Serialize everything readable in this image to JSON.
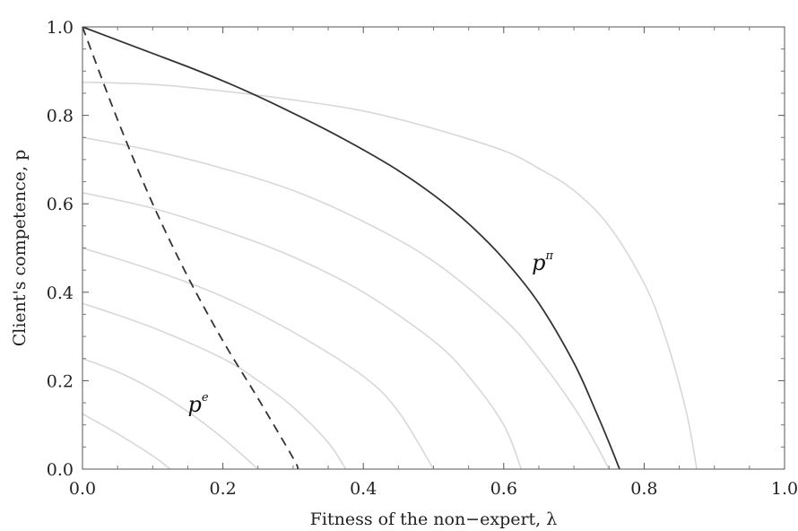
{
  "chart_data": {
    "type": "line",
    "xlabel": "Fitness of the non−expert, λ",
    "ylabel": "Client's competence, p",
    "xlim": [
      0,
      1
    ],
    "ylim": [
      0,
      1
    ],
    "x_ticks": [
      "0.0",
      "0.2",
      "0.4",
      "0.6",
      "0.8",
      "1.0"
    ],
    "y_ticks": [
      "0.0",
      "0.2",
      "0.4",
      "0.6",
      "0.8",
      "1.0"
    ],
    "grid": false,
    "series": [
      {
        "name": "pπ",
        "label_main": "p",
        "label_sup": "π",
        "style": "solid",
        "color": "#333333",
        "x": [
          0.0,
          0.05,
          0.1,
          0.15,
          0.2,
          0.25,
          0.3,
          0.35,
          0.4,
          0.45,
          0.5,
          0.55,
          0.6,
          0.65,
          0.7,
          0.73,
          0.75,
          0.765
        ],
        "y": [
          1.0,
          0.97,
          0.94,
          0.91,
          0.878,
          0.843,
          0.805,
          0.765,
          0.722,
          0.675,
          0.62,
          0.555,
          0.475,
          0.375,
          0.24,
          0.135,
          0.06,
          0.0
        ]
      },
      {
        "name": "pe",
        "label_main": "p",
        "label_sup": "e",
        "style": "dashed",
        "color": "#333333",
        "x": [
          0.0,
          0.05,
          0.1,
          0.15,
          0.2,
          0.25,
          0.3,
          0.307
        ],
        "y": [
          1.0,
          0.79,
          0.6,
          0.435,
          0.29,
          0.16,
          0.025,
          0.0
        ]
      }
    ],
    "background_curves": {
      "color": "#d8d8d8",
      "lines": [
        {
          "x": [
            0.0,
            0.05,
            0.1,
            0.125
          ],
          "y": [
            0.125,
            0.08,
            0.03,
            0.0
          ]
        },
        {
          "x": [
            0.0,
            0.05,
            0.1,
            0.15,
            0.2,
            0.25
          ],
          "y": [
            0.25,
            0.22,
            0.18,
            0.13,
            0.07,
            0.0
          ]
        },
        {
          "x": [
            0.0,
            0.1,
            0.2,
            0.25,
            0.3,
            0.35,
            0.375
          ],
          "y": [
            0.375,
            0.32,
            0.25,
            0.2,
            0.14,
            0.06,
            0.0
          ]
        },
        {
          "x": [
            0.0,
            0.1,
            0.2,
            0.3,
            0.4,
            0.45,
            0.5
          ],
          "y": [
            0.5,
            0.45,
            0.39,
            0.31,
            0.21,
            0.13,
            0.0
          ]
        },
        {
          "x": [
            0.0,
            0.1,
            0.2,
            0.3,
            0.4,
            0.5,
            0.55,
            0.6,
            0.625
          ],
          "y": [
            0.625,
            0.59,
            0.54,
            0.48,
            0.4,
            0.29,
            0.21,
            0.1,
            0.0
          ]
        },
        {
          "x": [
            0.0,
            0.1,
            0.2,
            0.3,
            0.4,
            0.5,
            0.6,
            0.65,
            0.7,
            0.73,
            0.75
          ],
          "y": [
            0.75,
            0.72,
            0.68,
            0.63,
            0.56,
            0.47,
            0.34,
            0.25,
            0.14,
            0.06,
            0.0
          ]
        },
        {
          "x": [
            0.0,
            0.1,
            0.2,
            0.3,
            0.4,
            0.5,
            0.6,
            0.65,
            0.7,
            0.75,
            0.8,
            0.83,
            0.86,
            0.875
          ],
          "y": [
            0.875,
            0.87,
            0.855,
            0.835,
            0.81,
            0.77,
            0.72,
            0.68,
            0.63,
            0.55,
            0.42,
            0.3,
            0.13,
            0.0
          ]
        }
      ]
    }
  }
}
